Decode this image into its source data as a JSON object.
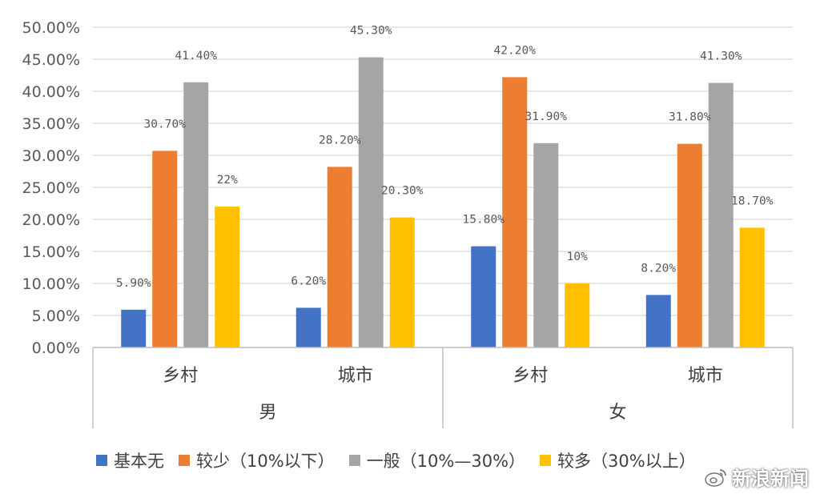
{
  "chart_data": {
    "type": "bar",
    "y_ticks": [
      "0.00%",
      "5.00%",
      "10.00%",
      "15.00%",
      "20.00%",
      "25.00%",
      "30.00%",
      "35.00%",
      "40.00%",
      "45.00%",
      "50.00%"
    ],
    "ylim": [
      0,
      50
    ],
    "grid": true,
    "legend_position": "bottom",
    "groups": [
      {
        "label": "男",
        "categories": [
          "乡村",
          "城市"
        ]
      },
      {
        "label": "女",
        "categories": [
          "乡村",
          "城市"
        ]
      }
    ],
    "series": [
      {
        "name": "基本无",
        "color": "#4472C4",
        "values": [
          5.9,
          6.2,
          15.8,
          8.2
        ],
        "labels": [
          "5.90%",
          "6.20%",
          "15.80%",
          "8.20%"
        ]
      },
      {
        "name": "较少（10%以下）",
        "color": "#ED7D31",
        "values": [
          30.7,
          28.2,
          42.2,
          31.8
        ],
        "labels": [
          "30.70%",
          "28.20%",
          "42.20%",
          "31.80%"
        ]
      },
      {
        "name": "一般（10%—30%）",
        "color": "#A5A5A5",
        "values": [
          41.4,
          45.3,
          31.9,
          41.3
        ],
        "labels": [
          "41.40%",
          "45.30%",
          "31.90%",
          "41.30%"
        ]
      },
      {
        "name": "较多（30%以上）",
        "color": "#FFC000",
        "values": [
          22,
          20.3,
          10,
          18.7
        ],
        "labels": [
          "22%",
          "20.30%",
          "10%",
          "18.70%"
        ]
      }
    ]
  },
  "watermark": {
    "text": "新浪新闻",
    "icon": "weibo-logo-icon"
  }
}
